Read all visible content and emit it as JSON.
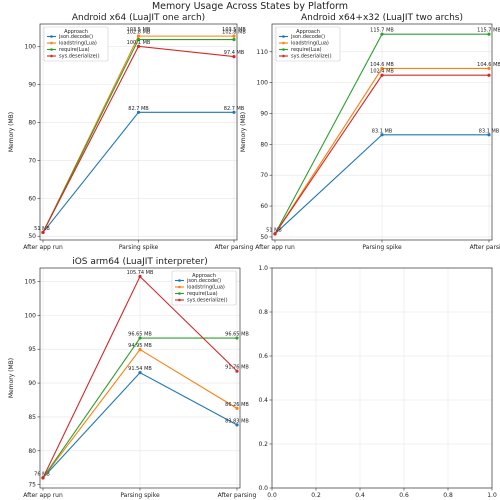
{
  "figure": {
    "title": "Memory Usage Across States by Platform",
    "colors": {
      "json.decode()": "#1f77b4",
      "loadstring(Lua)": "#ff7f0e",
      "require(Lua)": "#2ca02c",
      "sys.deserialize()": "#d62728"
    }
  },
  "chart_data": [
    {
      "type": "line",
      "title": "Android x64 (LuaJIT one arch)",
      "xlabel": "",
      "ylabel": "Memory (MB)",
      "categories": [
        "After app run",
        "Parsing spike",
        "After parsing"
      ],
      "ylim": [
        49,
        106
      ],
      "yticks": [
        50,
        60,
        70,
        80,
        90,
        100
      ],
      "grid": true,
      "legend": {
        "title": "Approach",
        "position": "top-left"
      },
      "series": [
        {
          "name": "json.decode()",
          "values": [
            51,
            82.7,
            82.7
          ],
          "labels": [
            "51 MB",
            "82.7 MB",
            "82.7 MB"
          ]
        },
        {
          "name": "loadstring(Lua)",
          "values": [
            51,
            102.8,
            102.8
          ],
          "labels": [
            "",
            "102.8 MB",
            "102.8 MB"
          ]
        },
        {
          "name": "require(Lua)",
          "values": [
            51,
            101.9,
            101.9
          ],
          "labels": [
            "",
            "",
            ""
          ]
        },
        {
          "name": "sys.deserialize()",
          "values": [
            51,
            100.1,
            97.4
          ],
          "labels": [
            "",
            "100.1 MB",
            "97.4 MB"
          ]
        }
      ],
      "extra_labels": [
        {
          "x": 1,
          "y": 103.5,
          "text": "103.5 MB"
        },
        {
          "x": 2,
          "y": 103.5,
          "text": "103.5 MB"
        }
      ]
    },
    {
      "type": "line",
      "title": "Android x64+x32 (LuaJIT two archs)",
      "xlabel": "",
      "ylabel": "Memory (MB)",
      "categories": [
        "After app run",
        "Parsing spike",
        "After parsing"
      ],
      "ylim": [
        49,
        119
      ],
      "yticks": [
        50,
        60,
        70,
        80,
        90,
        100,
        110
      ],
      "grid": true,
      "legend": {
        "title": "Approach",
        "position": "top-left"
      },
      "series": [
        {
          "name": "json.decode()",
          "values": [
            51,
            83.1,
            83.1
          ],
          "labels": [
            "51 MB",
            "83.1 MB",
            "83.1 MB"
          ]
        },
        {
          "name": "loadstring(Lua)",
          "values": [
            51,
            104.6,
            104.6
          ],
          "labels": [
            "",
            "104.6 MB",
            "104.6 MB"
          ]
        },
        {
          "name": "require(Lua)",
          "values": [
            51,
            115.7,
            115.7
          ],
          "labels": [
            "",
            "115.7 MB",
            "115.7 MB"
          ]
        },
        {
          "name": "sys.deserialize()",
          "values": [
            51,
            102.4,
            102.4
          ],
          "labels": [
            "",
            "102.4 MB",
            ""
          ]
        }
      ]
    },
    {
      "type": "line",
      "title": "iOS arm64 (LuaJIT interpreter)",
      "xlabel": "",
      "ylabel": "Memory (MB)",
      "categories": [
        "After app run",
        "Parsing spike",
        "After parsing"
      ],
      "ylim": [
        74.5,
        107
      ],
      "yticks": [
        75,
        80,
        85,
        90,
        95,
        100,
        105
      ],
      "grid": true,
      "legend": {
        "title": "Approach",
        "position": "top-right"
      },
      "series": [
        {
          "name": "json.decode()",
          "values": [
            76,
            91.54,
            83.83
          ],
          "labels": [
            "76 MB",
            "91.54 MB",
            "83.83 MB"
          ]
        },
        {
          "name": "loadstring(Lua)",
          "values": [
            76,
            94.95,
            86.26
          ],
          "labels": [
            "",
            "94.95 MB",
            "86.26 MB"
          ]
        },
        {
          "name": "require(Lua)",
          "values": [
            76,
            96.65,
            96.65
          ],
          "labels": [
            "",
            "96.65 MB",
            "96.65 MB"
          ]
        },
        {
          "name": "sys.deserialize()",
          "values": [
            76,
            105.74,
            91.76
          ],
          "labels": [
            "",
            "105.74 MB",
            "91.76 MB"
          ]
        }
      ]
    },
    {
      "type": "line",
      "title": "",
      "xlabel": "",
      "ylabel": "",
      "categories": [],
      "xlim": [
        0,
        1
      ],
      "ylim": [
        0,
        1
      ],
      "xticks": [
        "0.0",
        "0.2",
        "0.4",
        "0.6",
        "0.8",
        "1.0"
      ],
      "yticks": [
        "0.0",
        "0.2",
        "0.4",
        "0.6",
        "0.8",
        "1.0"
      ],
      "grid": true,
      "series": []
    }
  ]
}
